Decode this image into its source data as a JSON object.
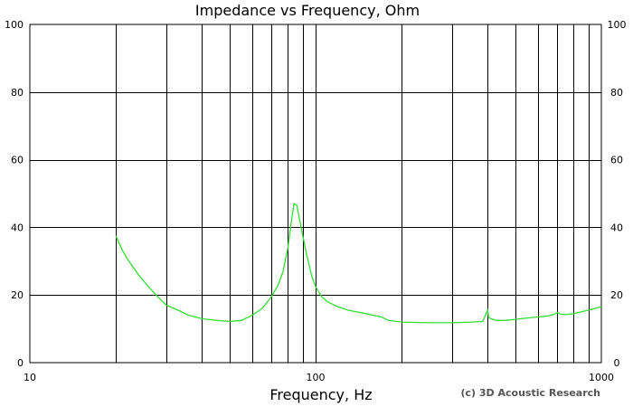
{
  "chart_data": {
    "type": "line",
    "title": "Impedance vs Frequency, Ohm",
    "xlabel": "Frequency, Hz",
    "ylabel": "",
    "credit": "(c) 3D Acoustic Research",
    "xscale": "log",
    "xlim": [
      10,
      1000
    ],
    "ylim": [
      0,
      100
    ],
    "x_ticks": [
      10,
      100,
      1000
    ],
    "x_tick_labels": [
      "10",
      "100",
      "1000"
    ],
    "y_ticks": [
      0,
      20,
      40,
      60,
      80,
      100
    ],
    "y_tick_labels": [
      "0",
      "20",
      "40",
      "60",
      "80",
      "100"
    ],
    "y_ticks_right": true,
    "grid": true,
    "x_gridlines": [
      20,
      30,
      40,
      50,
      60,
      70,
      80,
      90,
      100,
      200,
      300,
      400,
      500,
      600,
      700,
      800,
      900
    ],
    "y_gridlines": [
      20,
      40,
      60,
      80
    ],
    "line_color": "#33dd33",
    "series": [
      {
        "x": [
          20,
          21,
          22,
          24,
          26,
          28,
          30,
          33,
          36,
          40,
          45,
          50,
          55,
          60,
          65,
          70,
          74,
          77,
          80,
          82,
          84,
          86,
          88,
          90,
          93,
          97,
          100,
          105,
          110,
          120,
          130,
          150,
          170,
          180,
          200,
          250,
          300,
          350,
          385,
          395,
          400,
          403,
          410,
          430,
          460,
          500,
          550,
          600,
          650,
          680,
          700,
          720,
          750,
          800,
          900,
          1000
        ],
        "y": [
          37.5,
          33.5,
          30.5,
          26,
          22.5,
          19.5,
          17,
          15.5,
          14,
          13,
          12.5,
          12.2,
          12.5,
          14,
          16,
          19.5,
          23,
          27,
          34,
          41,
          47,
          46.5,
          42,
          38,
          32,
          25.5,
          22.5,
          19.5,
          18,
          16.5,
          15.5,
          14.5,
          13.5,
          12.5,
          12,
          11.8,
          11.8,
          12,
          12.2,
          14.5,
          15.5,
          13.5,
          13,
          12.5,
          12.5,
          12.8,
          13.2,
          13.5,
          13.8,
          14.2,
          14.8,
          14.3,
          14.2,
          14.5,
          15.5,
          16.5
        ]
      }
    ]
  }
}
